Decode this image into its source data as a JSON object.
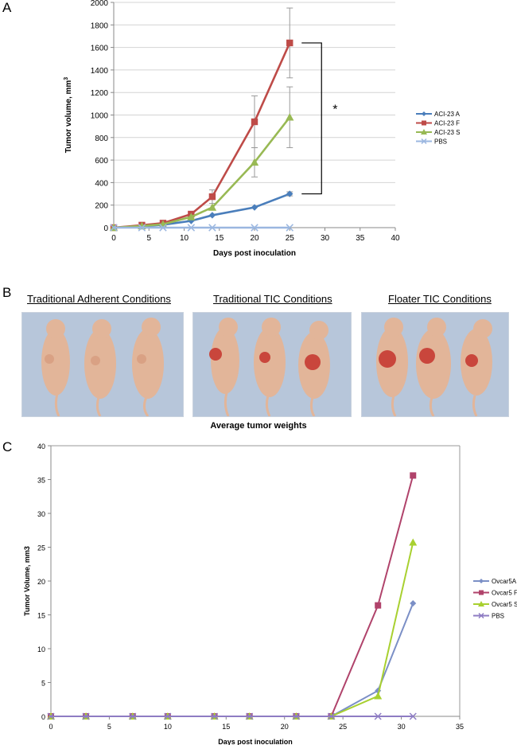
{
  "panels": {
    "a": {
      "letter": "A"
    },
    "b": {
      "letter": "B",
      "conditions": [
        "Traditional Adherent Conditions",
        "Traditional TIC Conditions",
        "Floater TIC Conditions"
      ],
      "caption": "Average tumor weights"
    },
    "c": {
      "letter": "C"
    }
  },
  "colors": {
    "blue": "#4a7ebb",
    "red": "#be4b48",
    "green": "#98b954",
    "light_blue": "#9bb7e0",
    "slate": "#7b8fc6",
    "magenta": "#b0436b",
    "lime": "#a8d030",
    "purple": "#8e7cc3",
    "photo_background": "#b7c6da",
    "mouse_skin": "#e2b599",
    "tumor": "#c9463c"
  },
  "chart_data": [
    {
      "id": "chart-a",
      "type": "line",
      "title": "",
      "xlabel": "Days post inoculation",
      "ylabel": "Tumor volume, mm",
      "ylabel_superscript": "3",
      "xlim": [
        0,
        40
      ],
      "ylim": [
        0,
        2000
      ],
      "xticks": [
        0,
        5,
        10,
        15,
        20,
        25,
        30,
        35,
        40
      ],
      "yticks": [
        0,
        200,
        400,
        600,
        800,
        1000,
        1200,
        1400,
        1600,
        1800,
        2000
      ],
      "grid": "horizontal",
      "legend_position": "right",
      "significance_bracket": {
        "label": "*",
        "from": 300,
        "to": 1640,
        "at_x": 25
      },
      "series": [
        {
          "name": "ACI-23 A",
          "color": "#4a7ebb",
          "marker": "diamond",
          "x": [
            0,
            4,
            7,
            11,
            14,
            20,
            25
          ],
          "values": [
            0,
            12,
            25,
            60,
            110,
            180,
            300
          ],
          "error": [
            0,
            0,
            0,
            0,
            0,
            0,
            18
          ]
        },
        {
          "name": "ACI-23 F",
          "color": "#be4b48",
          "marker": "square",
          "x": [
            0,
            4,
            7,
            11,
            14,
            20,
            25
          ],
          "values": [
            0,
            22,
            40,
            120,
            275,
            940,
            1640
          ],
          "error": [
            0,
            0,
            0,
            0,
            60,
            230,
            310
          ]
        },
        {
          "name": "ACI-23 S",
          "color": "#98b954",
          "marker": "triangle",
          "x": [
            0,
            4,
            7,
            11,
            14,
            20,
            25
          ],
          "values": [
            0,
            15,
            30,
            95,
            180,
            580,
            980
          ],
          "error": [
            0,
            0,
            0,
            0,
            0,
            130,
            270
          ]
        },
        {
          "name": "PBS",
          "color": "#9bb7e0",
          "marker": "x",
          "x": [
            0,
            4,
            7,
            11,
            14,
            20,
            25
          ],
          "values": [
            0,
            0,
            0,
            0,
            0,
            0,
            0
          ],
          "error": [
            0,
            0,
            0,
            0,
            0,
            0,
            0
          ]
        }
      ]
    },
    {
      "id": "chart-c",
      "type": "line",
      "title": "",
      "xlabel": "Days post inoculation",
      "ylabel": "Tumor Volume, mm3",
      "xlim": [
        0,
        35
      ],
      "ylim": [
        0,
        40
      ],
      "xticks": [
        0,
        5,
        10,
        15,
        20,
        25,
        30,
        35
      ],
      "yticks": [
        0,
        5,
        10,
        15,
        20,
        25,
        30,
        35,
        40
      ],
      "grid": "none",
      "legend_position": "right",
      "series": [
        {
          "name": "Ovcar5A",
          "color": "#7b8fc6",
          "marker": "diamond",
          "x": [
            0,
            3,
            7,
            10,
            14,
            17,
            21,
            24,
            28,
            31
          ],
          "values": [
            0,
            0,
            0,
            0,
            0,
            0,
            0,
            0,
            3.8,
            16.7
          ]
        },
        {
          "name": "Ovcar5 F",
          "color": "#b0436b",
          "marker": "square",
          "x": [
            0,
            3,
            7,
            10,
            14,
            17,
            21,
            24,
            28,
            31
          ],
          "values": [
            0,
            0,
            0,
            0,
            0,
            0,
            0,
            0,
            16.4,
            35.6
          ]
        },
        {
          "name": "Ovcar5 S",
          "color": "#a8d030",
          "marker": "triangle",
          "x": [
            0,
            3,
            7,
            10,
            14,
            17,
            21,
            24,
            28,
            31
          ],
          "values": [
            0,
            0,
            0,
            0,
            0,
            0,
            0,
            0,
            3.0,
            25.7
          ]
        },
        {
          "name": "PBS",
          "color": "#8e7cc3",
          "marker": "x",
          "x": [
            0,
            3,
            7,
            10,
            14,
            17,
            21,
            24,
            28,
            31
          ],
          "values": [
            0,
            0,
            0,
            0,
            0,
            0,
            0,
            0,
            0,
            0
          ]
        }
      ]
    }
  ]
}
